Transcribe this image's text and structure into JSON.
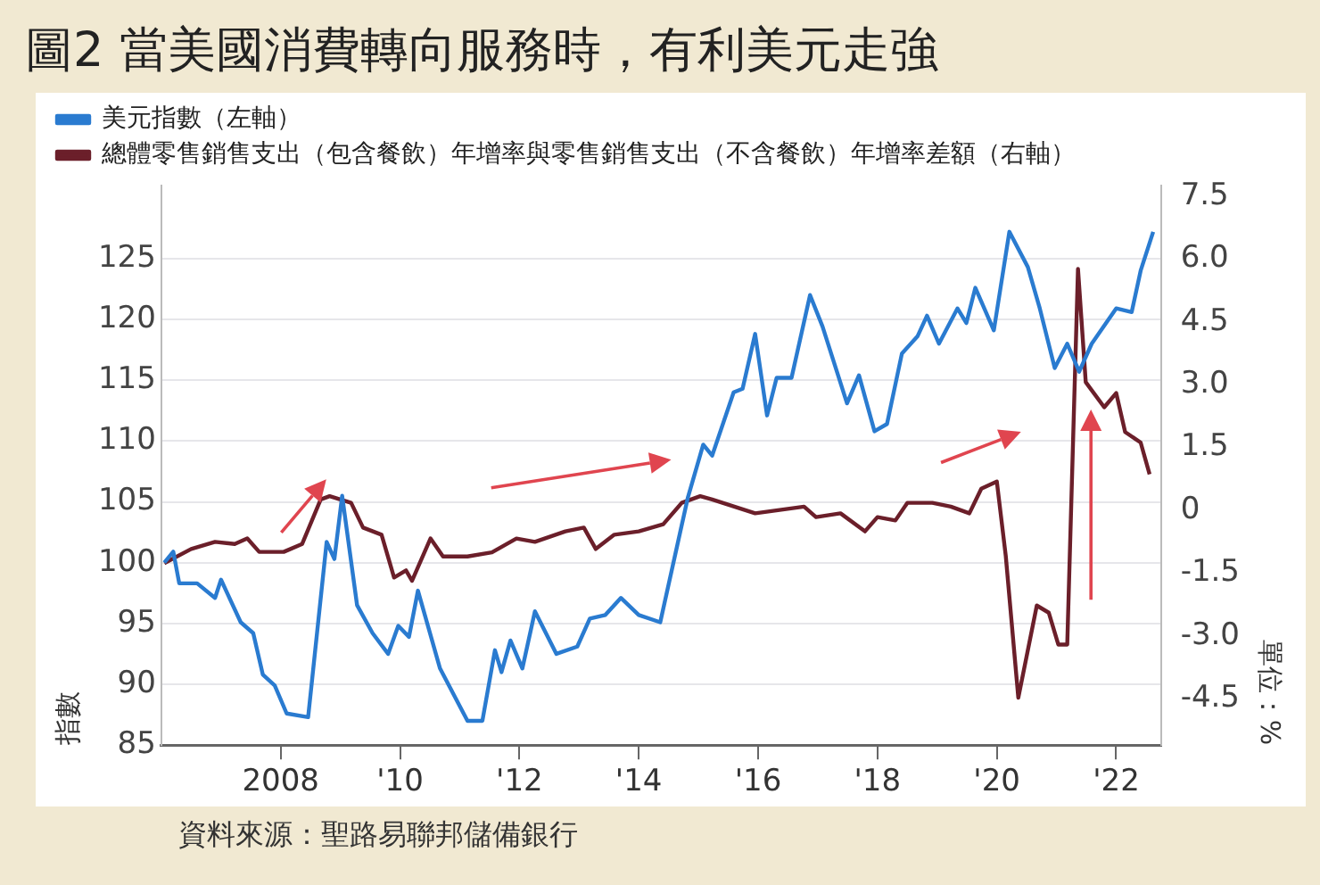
{
  "chart_data": {
    "type": "line",
    "title": "圖2 當美國消費轉向服務時，有利美元走強",
    "ylabel": "指數",
    "y2label": "單位：%",
    "annotations": [
      "資料來源：聖路易聯邦儲備銀行"
    ],
    "xlim": [
      2006,
      2022.75
    ],
    "xticks": [
      {
        "value": 2008,
        "label": "2008"
      },
      {
        "value": 2010,
        "label": "'10"
      },
      {
        "value": 2012,
        "label": "'12"
      },
      {
        "value": 2014,
        "label": "'14"
      },
      {
        "value": 2016,
        "label": "'16"
      },
      {
        "value": 2018,
        "label": "'18"
      },
      {
        "value": 2020,
        "label": "'20"
      },
      {
        "value": 2022,
        "label": "'22"
      }
    ],
    "ylim": [
      85,
      131
    ],
    "yticks": [
      85,
      90,
      95,
      100,
      105,
      110,
      115,
      120,
      125
    ],
    "y2lim": [
      -5.6,
      7.75
    ],
    "y2ticks": [
      -4.5,
      {
        "value": -3,
        "label": "-3.0"
      },
      -1.5,
      0,
      1.5,
      {
        "value": 3,
        "label": "3.0"
      },
      4.5,
      {
        "value": 6,
        "label": "6.0"
      },
      7.5
    ],
    "grid": "y",
    "legend": "top left",
    "marker": "none",
    "line_style": "solid",
    "series": [
      {
        "name": "美元指數（左軸）",
        "color": "#2a7bd0",
        "x": [
          2006.05,
          2006.2,
          2006.3,
          2006.6,
          2006.9,
          2007.0,
          2007.33,
          2007.54,
          2007.7,
          2007.9,
          2008.1,
          2008.46,
          2008.77,
          2008.9,
          2009.03,
          2009.28,
          2009.54,
          2009.8,
          2009.97,
          2010.15,
          2010.3,
          2010.67,
          2011.13,
          2011.38,
          2011.59,
          2011.7,
          2011.85,
          2012.05,
          2012.26,
          2012.62,
          2012.97,
          2013.18,
          2013.44,
          2013.7,
          2014.0,
          2014.36,
          2014.82,
          2015.08,
          2015.23,
          2015.59,
          2015.74,
          2015.95,
          2016.15,
          2016.31,
          2016.56,
          2016.87,
          2017.08,
          2017.49,
          2017.69,
          2017.95,
          2018.16,
          2018.41,
          2018.67,
          2018.83,
          2019.03,
          2019.34,
          2019.49,
          2019.64,
          2019.95,
          2020.21,
          2020.52,
          2020.72,
          2020.97,
          2021.18,
          2021.38,
          2021.59,
          2022.0,
          2022.26,
          2022.41,
          2022.62
        ],
        "values": [
          100,
          100.9,
          98.3,
          98.3,
          97.1,
          98.6,
          95.1,
          94.2,
          90.8,
          89.9,
          87.6,
          87.3,
          101.7,
          100.3,
          105.5,
          96.5,
          94.2,
          92.5,
          94.8,
          93.9,
          97.7,
          91.3,
          87,
          87,
          92.8,
          91,
          93.6,
          91.3,
          96,
          92.5,
          93.1,
          95.4,
          95.7,
          97.1,
          95.7,
          95.1,
          105.3,
          109.7,
          108.8,
          114,
          114.3,
          118.8,
          112.1,
          115.2,
          115.2,
          122,
          119.4,
          113.1,
          115.4,
          110.8,
          111.4,
          117.2,
          118.6,
          120.3,
          118,
          120.9,
          119.7,
          122.6,
          119.1,
          127.2,
          124.3,
          120.9,
          116,
          118,
          115.7,
          118,
          120.9,
          120.6,
          124,
          127.2
        ]
      },
      {
        "name": "總體零售銷售支出（包含餐飲）年增率與零售銷售支出（不含餐飲）年增率差額（右軸）",
        "color": "#6b1f2a",
        "axis": "y2",
        "x": [
          2006.05,
          2006.5,
          2006.9,
          2007.23,
          2007.44,
          2007.64,
          2008.05,
          2008.36,
          2008.67,
          2008.82,
          2009.18,
          2009.38,
          2009.69,
          2009.9,
          2010.1,
          2010.2,
          2010.51,
          2010.72,
          2011.13,
          2011.54,
          2011.95,
          2012.26,
          2012.77,
          2013.08,
          2013.28,
          2013.59,
          2014.0,
          2014.41,
          2014.72,
          2015.03,
          2015.23,
          2015.95,
          2016.36,
          2016.77,
          2016.97,
          2017.38,
          2017.79,
          2018.0,
          2018.3,
          2018.5,
          2018.92,
          2019.23,
          2019.54,
          2019.74,
          2020.0,
          2020.15,
          2020.36,
          2020.67,
          2020.87,
          2021.03,
          2021.18,
          2021.36,
          2021.49,
          2021.8,
          2022.0,
          2022.15,
          2022.41,
          2022.56
        ],
        "values": [
          -1.26,
          -0.92,
          -0.75,
          -0.8,
          -0.67,
          -0.99,
          -0.99,
          -0.8,
          0.26,
          0.34,
          0.18,
          -0.41,
          -0.58,
          -1.6,
          -1.43,
          -1.68,
          -0.67,
          -1.1,
          -1.1,
          -1.0,
          -0.67,
          -0.75,
          -0.5,
          -0.41,
          -0.92,
          -0.58,
          -0.5,
          -0.33,
          0.18,
          0.34,
          0.26,
          -0.07,
          0.01,
          0.09,
          -0.16,
          -0.07,
          -0.5,
          -0.16,
          -0.24,
          0.18,
          0.18,
          0.09,
          -0.07,
          0.52,
          0.69,
          -1.09,
          -4.47,
          -2.27,
          -2.44,
          -3.2,
          -3.2,
          5.76,
          3.06,
          2.46,
          2.8,
          1.87,
          1.62,
          0.86
        ]
      }
    ]
  }
}
